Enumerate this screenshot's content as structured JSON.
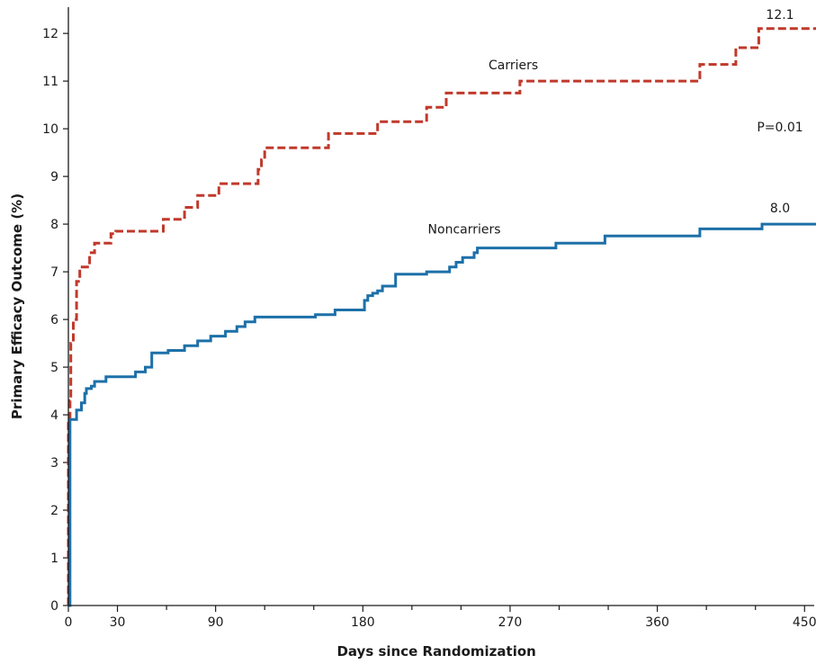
{
  "chart_data": {
    "type": "line",
    "step": true,
    "xlabel": "Days since Randomization",
    "ylabel": "Primary Efficacy Outcome (%)",
    "xlim": [
      0,
      457
    ],
    "ylim": [
      0,
      12.55
    ],
    "x_major_ticks": [
      0,
      30,
      90,
      180,
      270,
      360,
      450
    ],
    "x_minor_ticks": [
      60,
      120,
      150,
      210,
      240,
      300,
      330,
      390,
      420
    ],
    "y_ticks": [
      0,
      1,
      2,
      3,
      4,
      5,
      6,
      7,
      8,
      9,
      10,
      11,
      12
    ],
    "grid": false,
    "series": [
      {
        "name": "Carriers",
        "color": "#c0392b",
        "dash": "dashed",
        "end_label": "12.1",
        "points": [
          [
            0,
            0
          ],
          [
            0,
            3.9
          ],
          [
            1,
            4.3
          ],
          [
            1.5,
            5.5
          ],
          [
            3,
            6.0
          ],
          [
            5,
            6.8
          ],
          [
            7,
            7.1
          ],
          [
            13,
            7.4
          ],
          [
            16,
            7.6
          ],
          [
            26,
            7.8
          ],
          [
            29,
            7.85
          ],
          [
            58,
            8.1
          ],
          [
            71,
            8.35
          ],
          [
            79,
            8.6
          ],
          [
            92,
            8.85
          ],
          [
            116,
            9.15
          ],
          [
            118,
            9.35
          ],
          [
            120,
            9.6
          ],
          [
            159,
            9.9
          ],
          [
            189,
            10.15
          ],
          [
            219,
            10.45
          ],
          [
            231,
            10.75
          ],
          [
            276,
            11.0
          ],
          [
            386,
            11.35
          ],
          [
            408,
            11.7
          ],
          [
            422,
            12.1
          ],
          [
            457,
            12.1
          ]
        ]
      },
      {
        "name": "Noncarriers",
        "color": "#1d70a8",
        "dash": "solid",
        "end_label": "8.0",
        "points": [
          [
            0,
            0
          ],
          [
            1,
            3.9
          ],
          [
            5,
            4.1
          ],
          [
            8,
            4.25
          ],
          [
            10,
            4.45
          ],
          [
            11,
            4.55
          ],
          [
            14,
            4.6
          ],
          [
            16,
            4.7
          ],
          [
            23,
            4.8
          ],
          [
            41,
            4.9
          ],
          [
            47,
            5.0
          ],
          [
            51,
            5.3
          ],
          [
            61,
            5.35
          ],
          [
            71,
            5.45
          ],
          [
            79,
            5.55
          ],
          [
            87,
            5.65
          ],
          [
            96,
            5.75
          ],
          [
            103,
            5.85
          ],
          [
            108,
            5.95
          ],
          [
            114,
            6.05
          ],
          [
            151,
            6.1
          ],
          [
            163,
            6.2
          ],
          [
            181,
            6.4
          ],
          [
            183,
            6.5
          ],
          [
            186,
            6.55
          ],
          [
            189,
            6.6
          ],
          [
            192,
            6.7
          ],
          [
            200,
            6.95
          ],
          [
            219,
            7.0
          ],
          [
            233,
            7.1
          ],
          [
            237,
            7.2
          ],
          [
            241,
            7.3
          ],
          [
            248,
            7.4
          ],
          [
            250,
            7.5
          ],
          [
            298,
            7.6
          ],
          [
            328,
            7.75
          ],
          [
            386,
            7.9
          ],
          [
            424,
            8.0
          ],
          [
            457,
            8.0
          ]
        ]
      }
    ],
    "annotations": [
      {
        "text": "12.1",
        "x": 435,
        "y": 12.3,
        "anchor": "middle"
      },
      {
        "text": "Carriers",
        "x": 272,
        "y": 11.25,
        "anchor": "middle"
      },
      {
        "text": "P=0.01",
        "x": 435,
        "y": 9.95,
        "anchor": "middle"
      },
      {
        "text": "8.0",
        "x": 435,
        "y": 8.25,
        "anchor": "middle"
      },
      {
        "text": "Noncarriers",
        "x": 242,
        "y": 7.8,
        "anchor": "middle"
      }
    ]
  }
}
